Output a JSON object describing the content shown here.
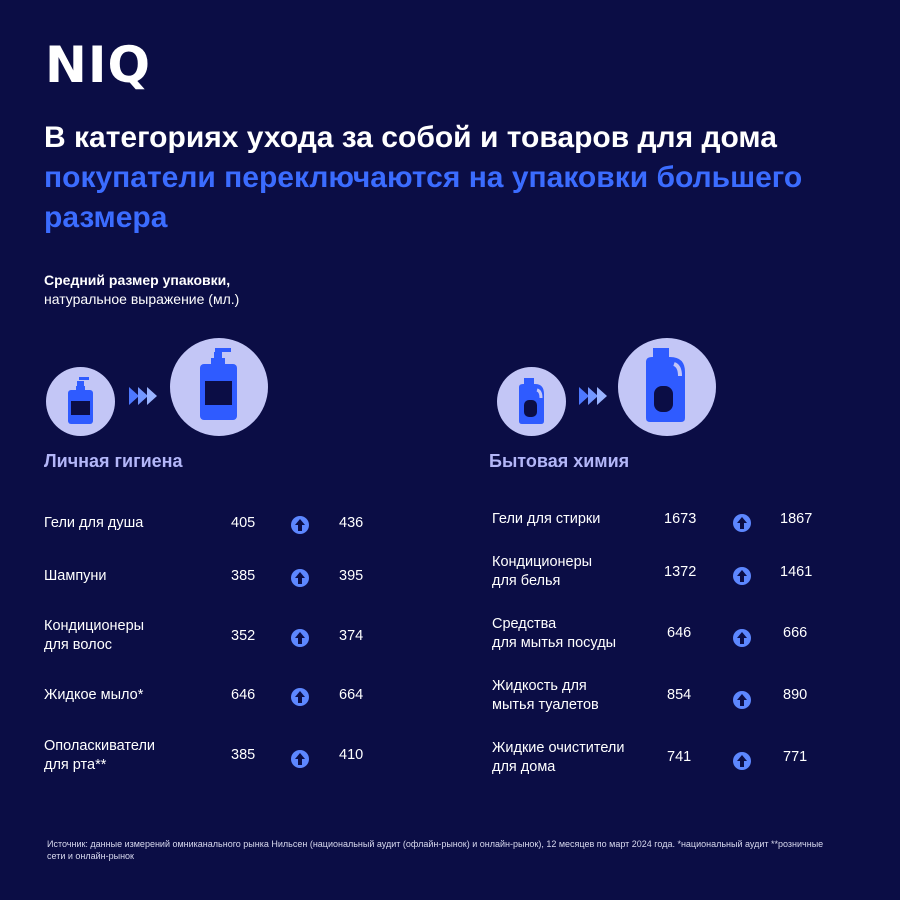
{
  "brand": {
    "logo_text": "NIQ"
  },
  "headline": {
    "part1": "В категориях ухода за собой и товаров для дома ",
    "accent": "покупатели переключаются на упаковки большего размера"
  },
  "subtitle": {
    "line1": "Средний размер упаковки,",
    "line2": "натуральное выражение (мл.)"
  },
  "colors": {
    "background": "#0b0d45",
    "accent_blue": "#3b6cff",
    "circle_fill": "#c3c6f6",
    "section_title": "#b3b6f8",
    "arrow_icon": "#5d87ff"
  },
  "sections": {
    "personal": {
      "title": "Личная гигиена",
      "rows": [
        {
          "name_line1": "Гели для душа",
          "name_line2": "",
          "before": "405",
          "after": "436"
        },
        {
          "name_line1": "Шампуни",
          "name_line2": "",
          "before": "385",
          "after": "395"
        },
        {
          "name_line1": "Кондиционеры",
          "name_line2": "для волос",
          "before": "352",
          "after": "374"
        },
        {
          "name_line1": "Жидкое мыло*",
          "name_line2": "",
          "before": "646",
          "after": "664"
        },
        {
          "name_line1": "Ополаскиватели",
          "name_line2": "для рта**",
          "before": "385",
          "after": "410"
        }
      ]
    },
    "household": {
      "title": "Бытовая химия",
      "rows": [
        {
          "name_line1": "Гели для стирки",
          "name_line2": "",
          "before": "1673",
          "after": "1867"
        },
        {
          "name_line1": "Кондиционеры",
          "name_line2": "для белья",
          "before": "1372",
          "after": "1461"
        },
        {
          "name_line1": "Средства",
          "name_line2": "для мытья посуды",
          "before": "646",
          "after": "666"
        },
        {
          "name_line1": "Жидкость для",
          "name_line2": "мытья туалетов",
          "before": "854",
          "after": "890"
        },
        {
          "name_line1": "Жидкие очистители",
          "name_line2": "для дома",
          "before": "741",
          "after": "771"
        }
      ]
    }
  },
  "footnote": "Источник: данные измерений омниканального рынка Нильсен (национальный аудит (офлайн-рынок) и онлайн-рынок), 12 месяцев по март 2024 года. *национальный аудит **розничные сети и онлайн-рынок"
}
